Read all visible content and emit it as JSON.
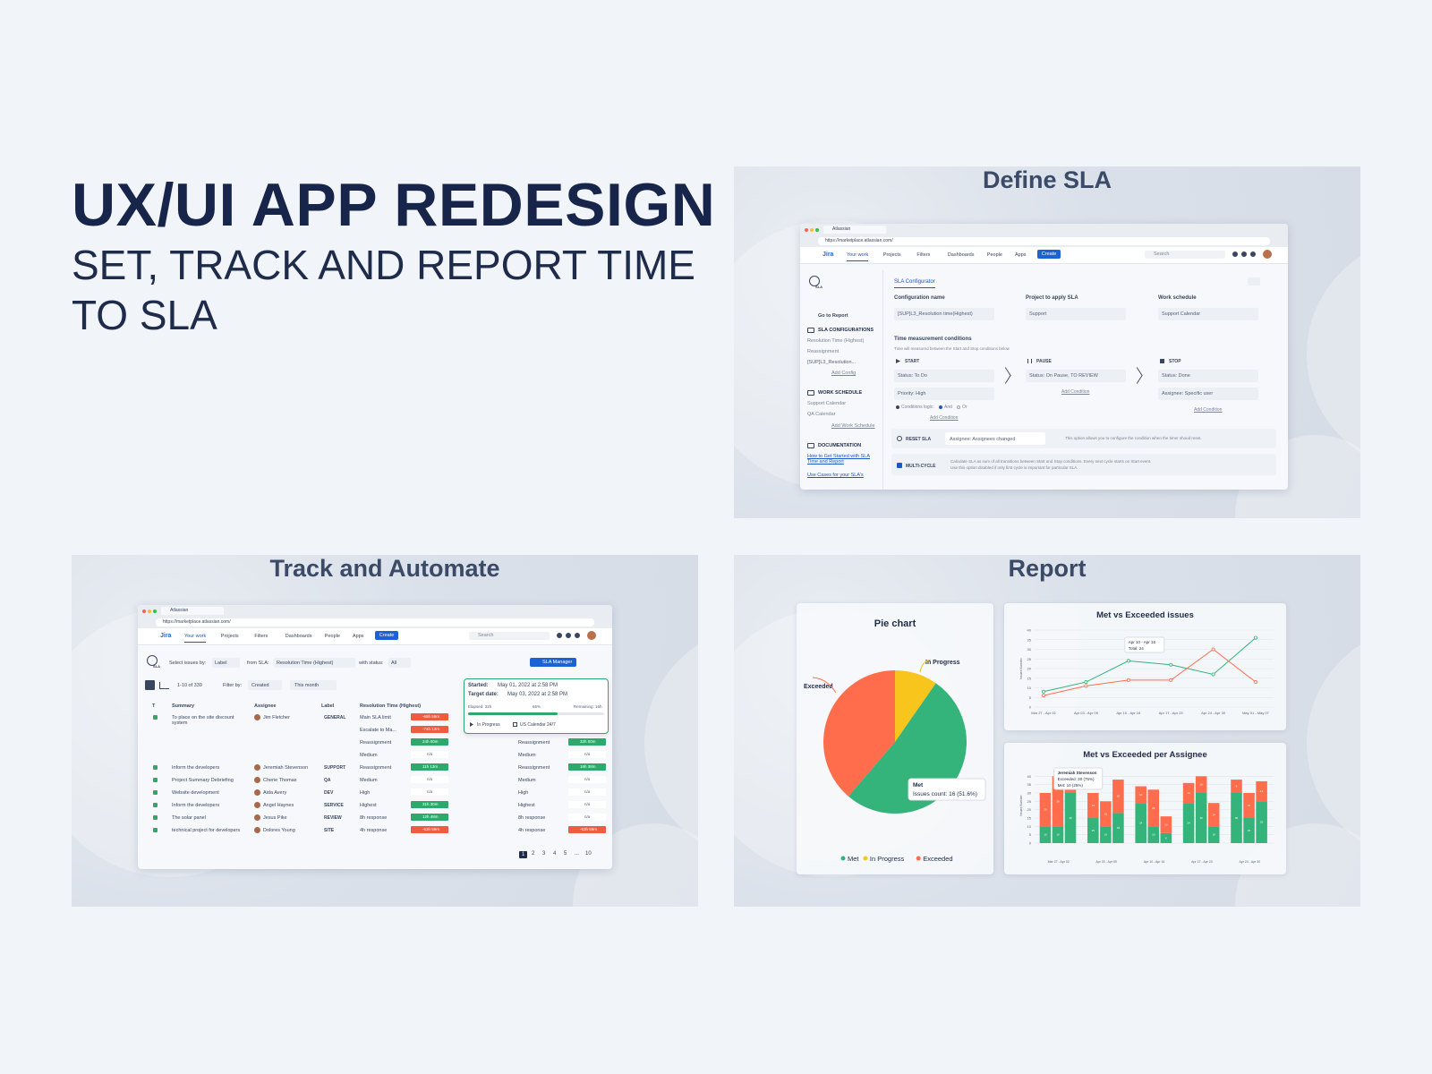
{
  "header": {
    "title": "UX/UI APP REDESIGN",
    "subtitle": "SET, TRACK AND REPORT TIME TO SLA"
  },
  "app": {
    "tab": "Atlassian",
    "url": "https://marketplace.atlassian.com/",
    "logo": "Jira",
    "nav": [
      "Your work",
      "Projects",
      "Filters",
      "Dashboards",
      "People",
      "Apps"
    ],
    "create": "Create",
    "search": "Search",
    "badge": "SLA"
  },
  "define": {
    "title": "Define SLA",
    "tab": "SLA Configurator",
    "sidebar": [
      {
        "text": "Go to Report",
        "kind": "link"
      },
      {
        "text": "SLA CONFIGURATIONS",
        "kind": "head"
      },
      {
        "text": "Resolution Time (Highest)",
        "kind": "item"
      },
      {
        "text": "Reassignment",
        "kind": "item"
      },
      {
        "text": "[SUP]L3_Resolution...",
        "kind": "active"
      },
      {
        "text": "Add Config",
        "kind": "add"
      },
      {
        "text": "WORK SCHEDULE",
        "kind": "head"
      },
      {
        "text": "Support Calendar",
        "kind": "item"
      },
      {
        "text": "QA Calendar",
        "kind": "item"
      },
      {
        "text": "Add Work Schedule",
        "kind": "add"
      },
      {
        "text": "DOCUMENTATION",
        "kind": "head"
      },
      {
        "text": "How to Get Started with SLA Time and Report",
        "kind": "doc"
      },
      {
        "text": "Use Cases for your SLA's",
        "kind": "doc"
      }
    ],
    "fields": [
      {
        "label": "Configuration name",
        "value": "[SUP]L3_Resolution time(Highest)"
      },
      {
        "label": "Project to apply SLA",
        "value": "Support"
      },
      {
        "label": "Work schedule",
        "value": "Support Calendar"
      }
    ],
    "conditions": {
      "title": "Time measurement conditions",
      "note": "Time will measured between the Start and Stop conditions below",
      "columns": [
        {
          "name": "START",
          "items": [
            "Status: To Do",
            "Priority: High"
          ],
          "add": "Add Condition"
        },
        {
          "name": "PAUSE",
          "items": [
            "Status: On Pause, TO REVIEW"
          ],
          "add": "Add Condition"
        },
        {
          "name": "STOP",
          "items": [
            "Status: Done",
            "Assignee: Specific user"
          ],
          "add": "Add Condition"
        }
      ],
      "logic": "Conditions logic:",
      "and": "And",
      "or": "Or"
    },
    "reset": {
      "label": "RESET SLA",
      "value": "Assignee: Assignees changed",
      "note": "This option allows you to configure the condition when the timer shoud reset."
    },
    "multi": {
      "label": "MULTI-CYCLE",
      "note": [
        "Calculate SLA as sum of all transitions between Start and Stop conditions. Every next cycle starts on Start event.",
        "Use this option disabled if only first cycle is important for particular SLA."
      ]
    }
  },
  "track": {
    "title": "Track and Automate",
    "toolbar": {
      "select": "Select issues by:",
      "selectValue": "Label",
      "from": "from SLA:",
      "fromValue": "Resolution Time (Highest)",
      "status": "with status:",
      "statusValue": "All",
      "manager": "SLA Manager"
    },
    "filter": {
      "count": "1-10 of 339",
      "by": "Filter by:",
      "byValue": "Created",
      "period": "This month"
    },
    "columns": [
      "T",
      "Summary",
      "Assignee",
      "Label",
      "Resolution Time (Highest)"
    ],
    "rows": [
      {
        "summary": "To place on the site discount system",
        "assignee": "Jim Fletcher",
        "label": "GENERAL",
        "sla": [
          {
            "name": "Main SLA limit",
            "timer": "-65h 59m",
            "color": "#ef5b3e"
          },
          {
            "name": "Escalate to Ma...",
            "timer": "-74h 13m",
            "color": "#ef5b3e"
          },
          {
            "name": "Reassignment",
            "timer": "24h 00m",
            "color": "#2fa96b"
          },
          {
            "name": "Medium",
            "timer": "n/a"
          }
        ],
        "sla2": [
          {
            "name": "Reassignment",
            "timer": "32h 00m",
            "color": "#2fa96b"
          },
          {
            "name": "Medium",
            "timer": "n/a"
          }
        ]
      },
      {
        "summary": "Inform the developers",
        "assignee": "Jeremiah Stevenson",
        "label": "SUPPORT",
        "sla": [
          {
            "name": "Reassignment",
            "timer": "11h 13m",
            "color": "#2fa96b"
          }
        ],
        "sla2": [
          {
            "name": "Reassignment",
            "timer": "16h 38m",
            "color": "#2fa96b"
          }
        ]
      },
      {
        "summary": "Project Summary Debriefing",
        "assignee": "Cherie Thomas",
        "label": "QA",
        "sla": [
          {
            "name": "Medium",
            "timer": "n/a"
          }
        ],
        "sla2": [
          {
            "name": "Medium",
            "timer": "n/a"
          }
        ]
      },
      {
        "summary": "Website development",
        "assignee": "Aida Avery",
        "label": "DEV",
        "sla": [
          {
            "name": "High",
            "timer": "n/a"
          }
        ],
        "sla2": [
          {
            "name": "High",
            "timer": "n/a"
          }
        ]
      },
      {
        "summary": "Inform the developers",
        "assignee": "Angel Haynes",
        "label": "SERVICE",
        "sla": [
          {
            "name": "Highest",
            "timer": "31h 30m",
            "color": "#2fa96b"
          }
        ],
        "sla2": [
          {
            "name": "Highest",
            "timer": "n/a"
          }
        ]
      },
      {
        "summary": "The solar panel",
        "assignee": "Jesus Pike",
        "label": "REVIEW",
        "sla": [
          {
            "name": "8h response",
            "timer": "12h 48m",
            "color": "#2fa96b"
          }
        ],
        "sla2": [
          {
            "name": "8h response",
            "timer": "n/a"
          }
        ]
      },
      {
        "summary": "technical project for developers",
        "assignee": "Dolores Young",
        "label": "SITE",
        "sla": [
          {
            "name": "4h response",
            "timer": "-53h 59m",
            "color": "#ef5b3e"
          }
        ],
        "sla2": [
          {
            "name": "4h response",
            "timer": "-53h 59m",
            "color": "#ef5b3e"
          }
        ]
      }
    ],
    "popup": {
      "started": "Started:",
      "startedValue": "May 01, 2022 at 2:58 PM",
      "target": "Target date:",
      "targetValue": "May 03, 2022 at 2:58 PM",
      "elapsed": "Elapsed: 32h",
      "pct": "66%",
      "progress": 66,
      "remaining": "Remaining: 16h",
      "status": "In Progress",
      "calendar": "US Calendar 24/7"
    },
    "pagination": [
      "1",
      "2",
      "3",
      "4",
      "5",
      "...",
      "10"
    ]
  },
  "report": {
    "title": "Report",
    "pie": {
      "type": "pie",
      "title": "Pie chart",
      "categories": [
        "Met",
        "In Progress",
        "Exceeded"
      ],
      "values": [
        16,
        3,
        12
      ],
      "colors": [
        "#34b37a",
        "#f8c51c",
        "#ff6d4d"
      ],
      "tooltip": {
        "title": "Met",
        "text": "Issues count: 16 (51.6%)"
      }
    },
    "line": {
      "type": "line",
      "title": "Met vs Exceeded issues",
      "y_label": "Issues Number",
      "categories": [
        "Mar 27 - Apr 02",
        "Apr 03 - Apr 09",
        "Apr 10 - Apr 16",
        "Apr 17 - Apr 23",
        "Apr 24 - Apr 30",
        "May 01 - May 07"
      ],
      "series": [
        {
          "name": "Met",
          "color": "#34b37a",
          "values": [
            8,
            13,
            24,
            22,
            17,
            36
          ]
        },
        {
          "name": "Exceeded",
          "color": "#ff6d4d",
          "values": [
            6,
            11,
            14,
            14,
            30,
            13
          ]
        }
      ],
      "ylim": [
        0,
        40
      ],
      "yticks": [
        0,
        5,
        10,
        15,
        20,
        25,
        30,
        35,
        40
      ],
      "grid": true,
      "tooltip": {
        "title": "Apr 10 - Apr 16",
        "text": "Total: 24"
      }
    },
    "bar": {
      "type": "stacked_bar",
      "title": "Met vs Exceeded per Assignee",
      "y_label": "Issues Number",
      "groups": [
        "Mar 27 - Apr 02",
        "Apr 03 - Apr 09",
        "Apr 10 - Apr 16",
        "Apr 17 - Apr 23",
        "Apr 24 - Apr 30"
      ],
      "series": [
        {
          "name": "Met",
          "color": "#34b37a",
          "values": [
            10,
            10,
            30,
            15,
            10,
            18,
            24,
            10,
            6,
            24,
            30,
            10,
            30,
            15,
            25
          ]
        },
        {
          "name": "Exceeded",
          "color": "#ff6d4d",
          "values": [
            20,
            30,
            8,
            15,
            15,
            20,
            10,
            22,
            10,
            12,
            10,
            14,
            8,
            15,
            12
          ]
        }
      ],
      "ylim": [
        0,
        45
      ],
      "yticks": [
        0,
        5,
        10,
        15,
        20,
        25,
        30,
        35,
        40
      ],
      "grid": true,
      "tooltip": {
        "title": "Jeremiah Stevenson",
        "exceeded": "Exceeded: 30 (75%)",
        "met": "Met: 10 (25%)"
      }
    }
  }
}
